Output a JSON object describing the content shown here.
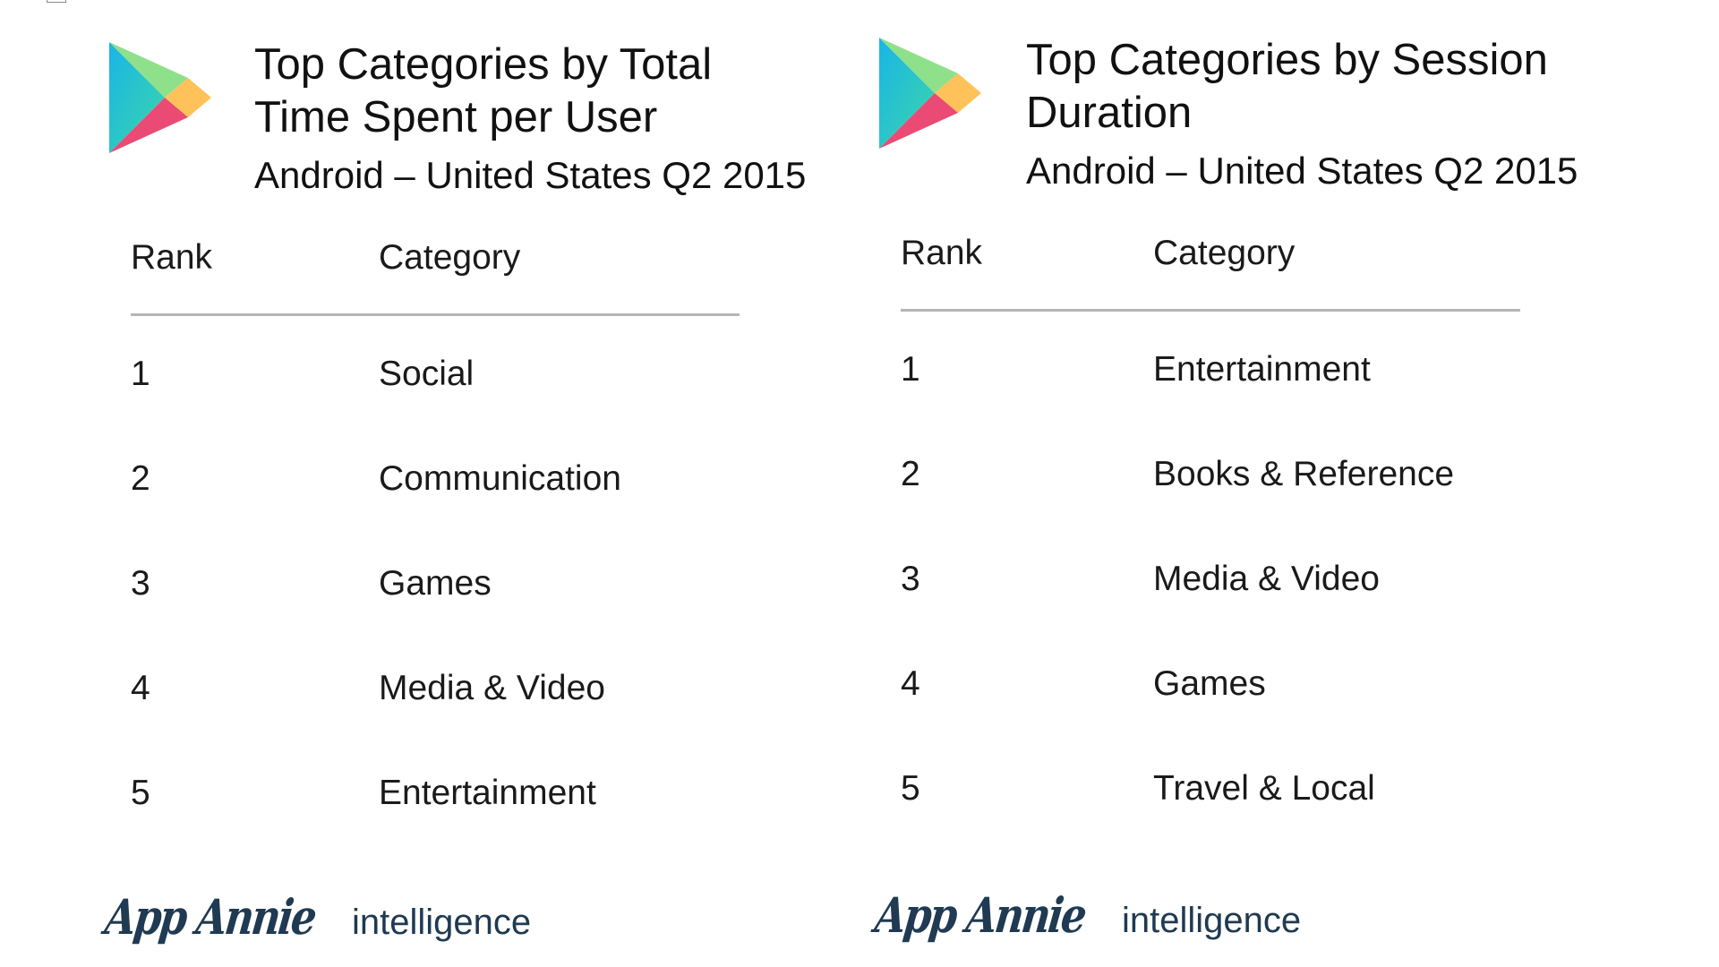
{
  "panels": [
    {
      "title": "Top Categories by Total Time Spent per User",
      "subtitle": "Android – United States Q2 2015",
      "columns": [
        "Rank",
        "Category"
      ],
      "rows": [
        {
          "rank": "1",
          "category": "Social"
        },
        {
          "rank": "2",
          "category": "Communication"
        },
        {
          "rank": "3",
          "category": "Games"
        },
        {
          "rank": "4",
          "category": "Media & Video"
        },
        {
          "rank": "5",
          "category": "Entertainment"
        }
      ],
      "brand_name": "App Annie",
      "brand_suffix": "intelligence"
    },
    {
      "title": "Top Categories by Session Duration",
      "subtitle": "Android – United States Q2 2015",
      "columns": [
        "Rank",
        "Category"
      ],
      "rows": [
        {
          "rank": "1",
          "category": "Entertainment"
        },
        {
          "rank": "2",
          "category": "Books & Reference"
        },
        {
          "rank": "3",
          "category": "Media & Video"
        },
        {
          "rank": "4",
          "category": "Games"
        },
        {
          "rank": "5",
          "category": "Travel & Local"
        }
      ],
      "brand_name": "App Annie",
      "brand_suffix": "intelligence"
    }
  ],
  "icons": {
    "logo": "google-play-icon"
  },
  "colors": {
    "text": "#111111",
    "rule": "#b5b5b5",
    "brand": "#1f3a52",
    "play_green": "#3dd68c",
    "play_blue": "#1ea5e6",
    "play_yellow": "#ffd24a",
    "play_red": "#ef4a5c"
  }
}
